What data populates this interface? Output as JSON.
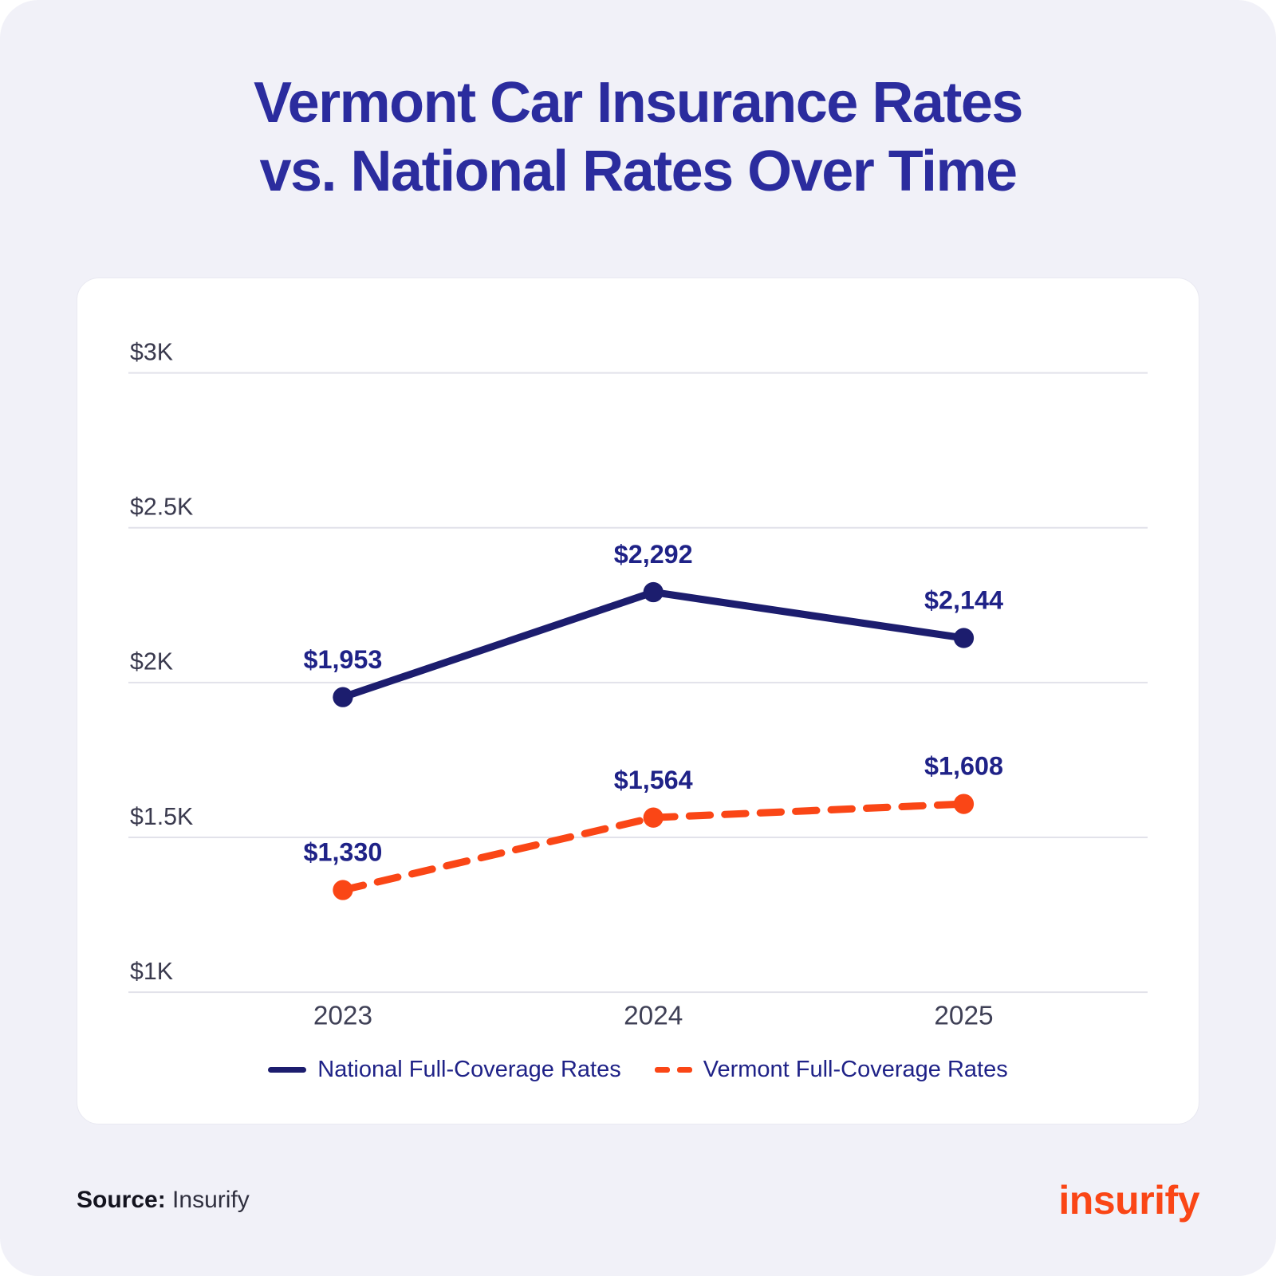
{
  "title": {
    "line1": "Vermont Car Insurance Rates",
    "line2": "vs. National Rates Over Time"
  },
  "chart_data": {
    "type": "line",
    "categories": [
      "2023",
      "2024",
      "2025"
    ],
    "series": [
      {
        "name": "National Full-Coverage Rates",
        "values": [
          1953,
          2292,
          2144
        ],
        "labels": [
          "$1,953",
          "$2,292",
          "$2,144"
        ],
        "color": "#1c1d6e",
        "style": "solid"
      },
      {
        "name": "Vermont Full-Coverage Rates",
        "values": [
          1330,
          1564,
          1608
        ],
        "labels": [
          "$1,330",
          "$1,564",
          "$1,608"
        ],
        "color": "#fa4616",
        "style": "dashed"
      }
    ],
    "ylim": [
      1000,
      3000
    ],
    "yticks": [
      {
        "value": 3000,
        "label": "$3K"
      },
      {
        "value": 2500,
        "label": "$2.5K"
      },
      {
        "value": 2000,
        "label": "$2K"
      },
      {
        "value": 1500,
        "label": "$1.5K"
      },
      {
        "value": 1000,
        "label": "$1K"
      }
    ],
    "grid": true,
    "legend_position": "bottom",
    "title": "Vermont Car Insurance Rates vs. National Rates Over Time"
  },
  "footer": {
    "source_label": "Source:",
    "source_value": "Insurify",
    "logo_text": "insurify"
  },
  "colors": {
    "navy_line": "#1c1d6e",
    "label_navy": "#1f2287",
    "orange": "#fa4616",
    "grid": "#e2e2ea",
    "title": "#2b2c9e",
    "background": "#f1f1f8"
  }
}
